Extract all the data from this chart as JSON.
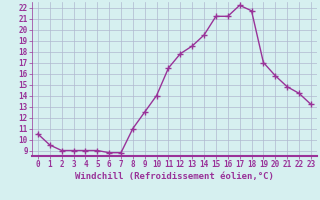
{
  "xlabel": "Windchill (Refroidissement éolien,°C)",
  "x": [
    0,
    1,
    2,
    3,
    4,
    5,
    6,
    7,
    8,
    9,
    10,
    11,
    12,
    13,
    14,
    15,
    16,
    17,
    18,
    19,
    20,
    21,
    22,
    23
  ],
  "y": [
    10.5,
    9.5,
    9.0,
    9.0,
    9.0,
    9.0,
    8.8,
    8.8,
    11.0,
    12.5,
    14.0,
    16.5,
    17.8,
    18.5,
    19.5,
    21.2,
    21.2,
    22.2,
    21.7,
    17.0,
    15.8,
    14.8,
    14.2,
    13.2
  ],
  "line_color": "#993399",
  "marker": "+",
  "marker_size": 4,
  "bg_color": "#d6f0f0",
  "grid_color": "#b0b8d0",
  "ylim": [
    8.5,
    22.5
  ],
  "yticks": [
    9,
    10,
    11,
    12,
    13,
    14,
    15,
    16,
    17,
    18,
    19,
    20,
    21,
    22
  ],
  "xticks": [
    0,
    1,
    2,
    3,
    4,
    5,
    6,
    7,
    8,
    9,
    10,
    11,
    12,
    13,
    14,
    15,
    16,
    17,
    18,
    19,
    20,
    21,
    22,
    23
  ],
  "axis_color": "#993399",
  "spine_color": "#993399",
  "tick_fontsize": 5.5,
  "label_fontsize": 6.5,
  "linewidth": 1.0,
  "xlim": [
    -0.5,
    23.5
  ]
}
